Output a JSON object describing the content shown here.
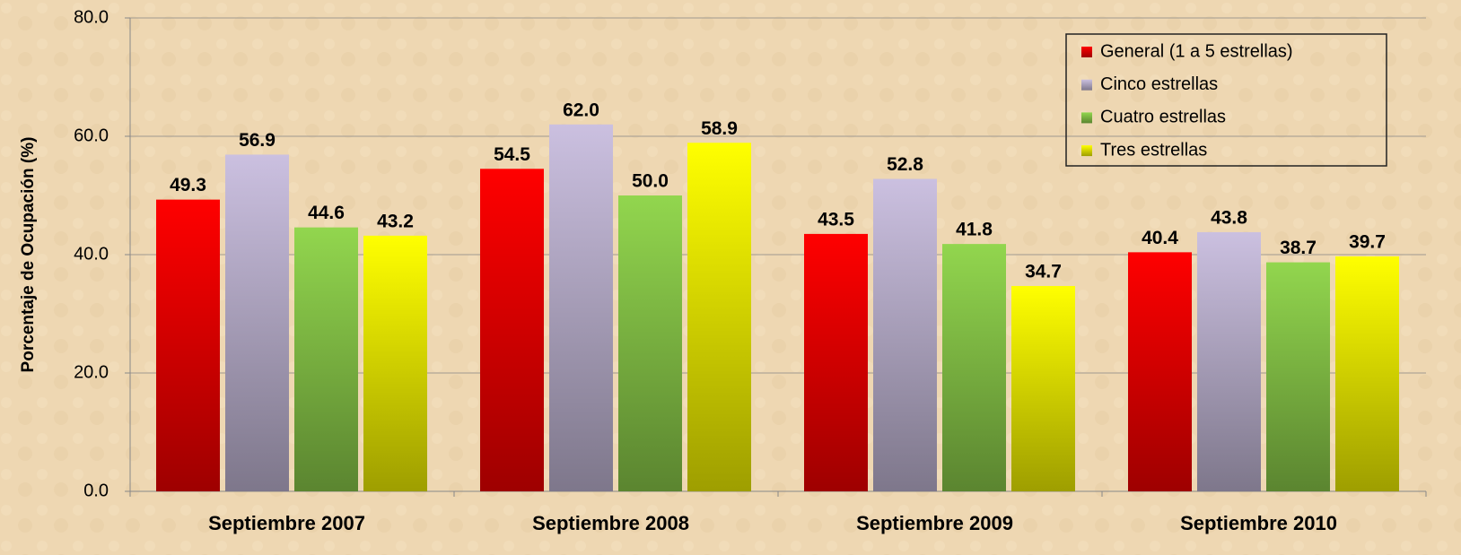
{
  "chart_data": {
    "type": "bar",
    "y_label": "Porcentaje de Ocupación (%)",
    "categories": [
      "Septiembre 2007",
      "Septiembre 2008",
      "Septiembre 2009",
      "Septiembre 2010"
    ],
    "series": [
      {
        "name": "General (1 a 5 estrellas)",
        "color": "#ff0000",
        "values": [
          49.3,
          54.5,
          43.5,
          40.4
        ],
        "value_labels": [
          "49.3",
          "54.5",
          "43.5",
          "40.4"
        ]
      },
      {
        "name": "Cinco estrellas",
        "color": "#cbc0e0",
        "values": [
          56.9,
          62.0,
          52.8,
          43.8
        ],
        "value_labels": [
          "56.9",
          "62.0",
          "52.8",
          "43.8"
        ]
      },
      {
        "name": "Cuatro estrellas",
        "color": "#92d64e",
        "values": [
          44.6,
          50.0,
          41.8,
          38.7
        ],
        "value_labels": [
          "44.6",
          "50.0",
          "41.8",
          "38.7"
        ]
      },
      {
        "name": "Tres estrellas",
        "color": "#ffff00",
        "values": [
          43.2,
          58.9,
          34.7,
          39.7
        ],
        "value_labels": [
          "43.2",
          "58.9",
          "34.7",
          "39.7"
        ]
      }
    ],
    "ylim": [
      0,
      80
    ],
    "yticks": [
      {
        "value": 0,
        "label": "0.0"
      },
      {
        "value": 20,
        "label": "20.0"
      },
      {
        "value": 40,
        "label": "40.0"
      },
      {
        "value": 60,
        "label": "60.0"
      },
      {
        "value": 80,
        "label": "80.0"
      }
    ],
    "grid": true,
    "legend": "upper right"
  }
}
